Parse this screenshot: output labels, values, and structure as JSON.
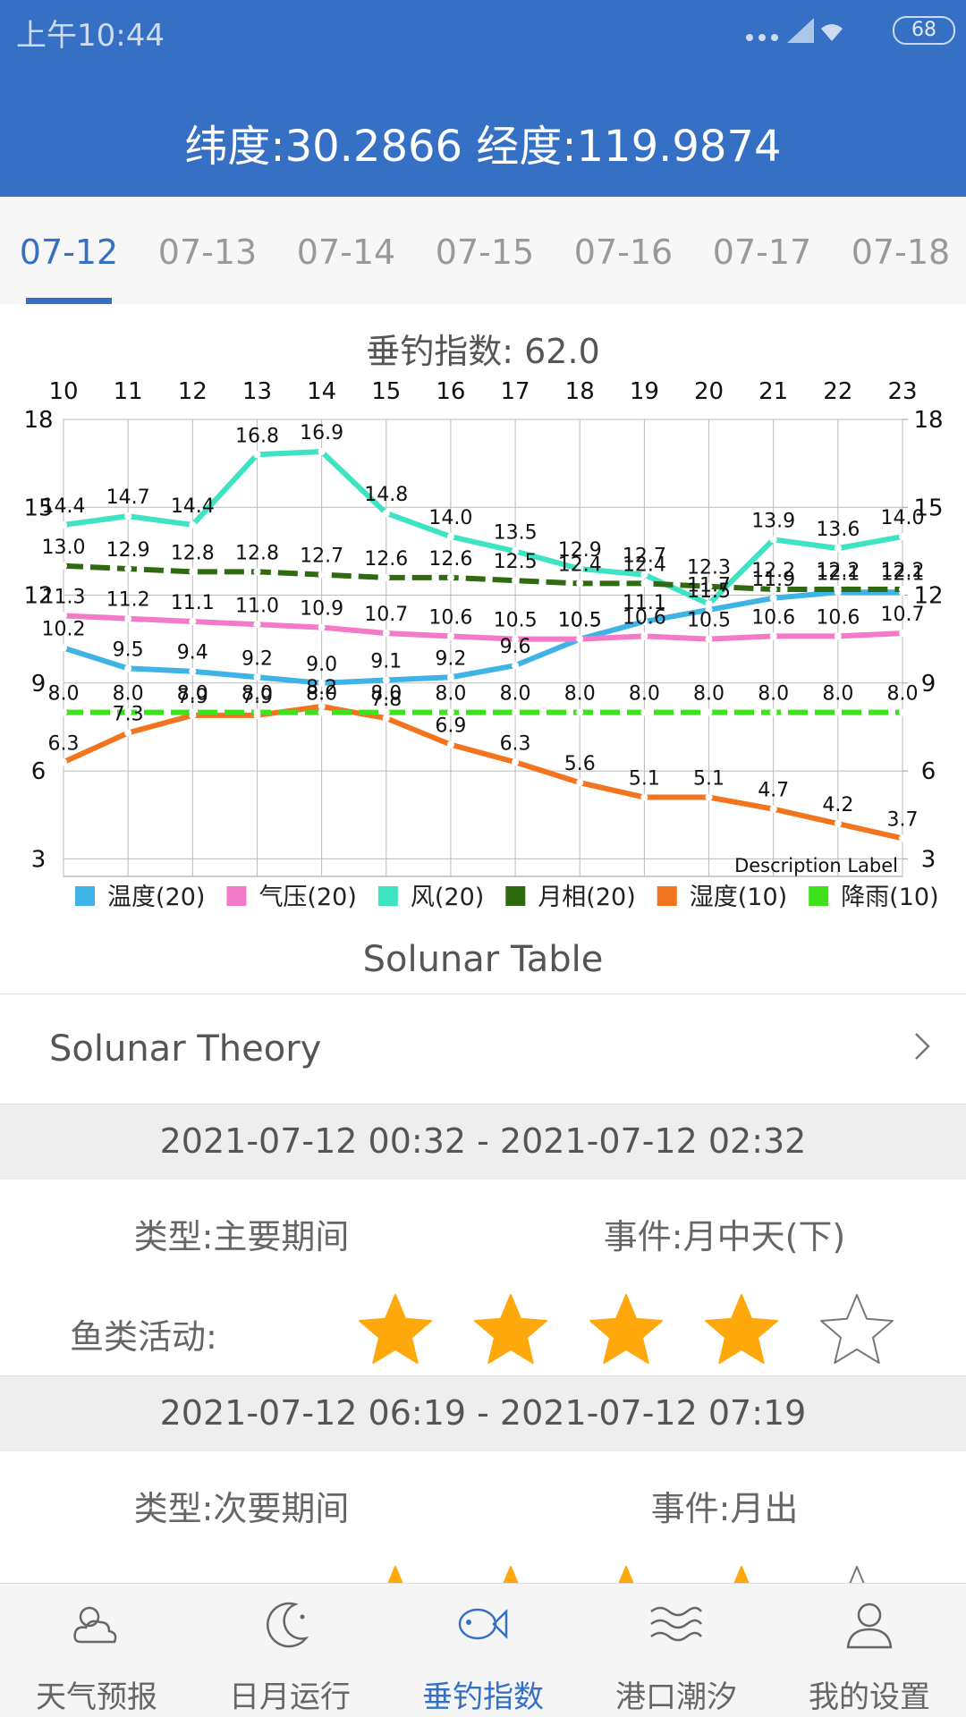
{
  "status_bar": {
    "time": "上午10:44",
    "battery": "68"
  },
  "header": {
    "title": "纬度:30.2866 经度:119.9874"
  },
  "tabs": {
    "items": [
      "07-12",
      "07-13",
      "07-14",
      "07-15",
      "07-16",
      "07-17",
      "07-18"
    ],
    "active": 0
  },
  "chart_data": {
    "type": "line",
    "title": "垂钓指数: 62.0",
    "description": "Description Label",
    "categories": [
      "10",
      "11",
      "12",
      "13",
      "14",
      "15",
      "16",
      "17",
      "18",
      "19",
      "20",
      "21",
      "22",
      "23"
    ],
    "ylim": [
      2.4,
      18
    ],
    "yticks": [
      3,
      6,
      9,
      12,
      15,
      18
    ],
    "y2lim": [
      2.4,
      18
    ],
    "y2ticks": [
      3,
      6,
      9,
      12,
      15,
      18
    ],
    "grid": true,
    "series": [
      {
        "name": "温度(20)",
        "color": "#3fb3e6",
        "dashed": false,
        "values": [
          10.2,
          9.5,
          9.4,
          9.2,
          9.0,
          9.1,
          9.2,
          9.6,
          10.5,
          11.1,
          11.5,
          11.9,
          12.1,
          12.1
        ],
        "value_labels": [
          "10.2",
          "9.5",
          "9.4",
          "9.2",
          "9.0",
          "9.1",
          "9.2",
          "9.6",
          "10.5",
          "11.1",
          "11.5",
          "11.9",
          "12.1",
          "12.1"
        ]
      },
      {
        "name": "气压(20)",
        "color": "#f27ac6",
        "dashed": false,
        "values": [
          11.3,
          11.2,
          11.1,
          11.0,
          10.9,
          10.7,
          10.6,
          10.5,
          10.5,
          10.6,
          10.5,
          10.6,
          10.6,
          10.7
        ],
        "value_labels": [
          "11.3",
          "11.2",
          "11.1",
          "11.0",
          "10.9",
          "10.7",
          "10.6",
          "10.5",
          "10.5",
          "10.6",
          "10.5",
          "10.6",
          "10.6",
          "10.7"
        ]
      },
      {
        "name": "风(20)",
        "color": "#3ee3c3",
        "dashed": false,
        "values": [
          14.4,
          14.7,
          14.4,
          16.8,
          16.9,
          14.8,
          14.0,
          13.5,
          12.9,
          12.7,
          11.7,
          13.9,
          13.6,
          14.0
        ],
        "value_labels": [
          "14.4",
          "14.7",
          "14.4",
          "16.8",
          "16.9",
          "14.8",
          "14.0",
          "13.5",
          "12.9",
          "12.7",
          "11.7",
          "13.9",
          "13.6",
          "14.0"
        ]
      },
      {
        "name": "月相(20)",
        "color": "#2f6a10",
        "dashed": true,
        "values": [
          13.0,
          12.9,
          12.8,
          12.8,
          12.7,
          12.6,
          12.6,
          12.5,
          12.4,
          12.4,
          12.3,
          12.2,
          12.2,
          12.2
        ],
        "value_labels": [
          "13.0",
          "12.9",
          "12.8",
          "12.8",
          "12.7",
          "12.6",
          "12.6",
          "12.5",
          "12.4",
          "12.4",
          "12.3",
          "12.2",
          "12.2",
          "12.2"
        ]
      },
      {
        "name": "湿度(10)",
        "color": "#f2741f",
        "dashed": false,
        "values": [
          6.3,
          7.3,
          7.9,
          7.9,
          8.2,
          7.8,
          6.9,
          6.3,
          5.6,
          5.1,
          5.1,
          4.7,
          4.2,
          3.7
        ],
        "value_labels": [
          "6.3",
          "7.3",
          "7.9",
          "7.9",
          "8.2",
          "7.8",
          "6.9",
          "6.3",
          "5.6",
          "5.1",
          "5.1",
          "4.7",
          "4.2",
          "3.7"
        ]
      },
      {
        "name": "降雨(10)",
        "color": "#3fe01e",
        "dashed": true,
        "values": [
          8.0,
          8.0,
          8.0,
          8.0,
          8.0,
          8.0,
          8.0,
          8.0,
          8.0,
          8.0,
          8.0,
          8.0,
          8.0,
          8.0
        ],
        "value_labels": [
          "8.0",
          "8.0",
          "8.0",
          "8.0",
          "8.0",
          "8.0",
          "8.0",
          "8.0",
          "8.0",
          "8.0",
          "8.0",
          "8.0",
          "8.0",
          "8.0"
        ]
      }
    ]
  },
  "solunar": {
    "title": "Solunar Table",
    "theory": "Solunar Theory",
    "periods": [
      {
        "time": "2021-07-12 00:32 - 2021-07-12 02:32",
        "type": "类型:主要期间",
        "event": "事件:月中天(下)",
        "activity_label": "鱼类活动:",
        "rating": 4,
        "max_rating": 5
      },
      {
        "time": "2021-07-12 06:19 - 2021-07-12 07:19",
        "type": "类型:次要期间",
        "event": "事件:月出",
        "rating": 4,
        "max_rating": 5
      }
    ]
  },
  "nav": {
    "items": [
      "天气预报",
      "日月运行",
      "垂钓指数",
      "港口潮汐",
      "我的设置"
    ],
    "active": 2
  }
}
